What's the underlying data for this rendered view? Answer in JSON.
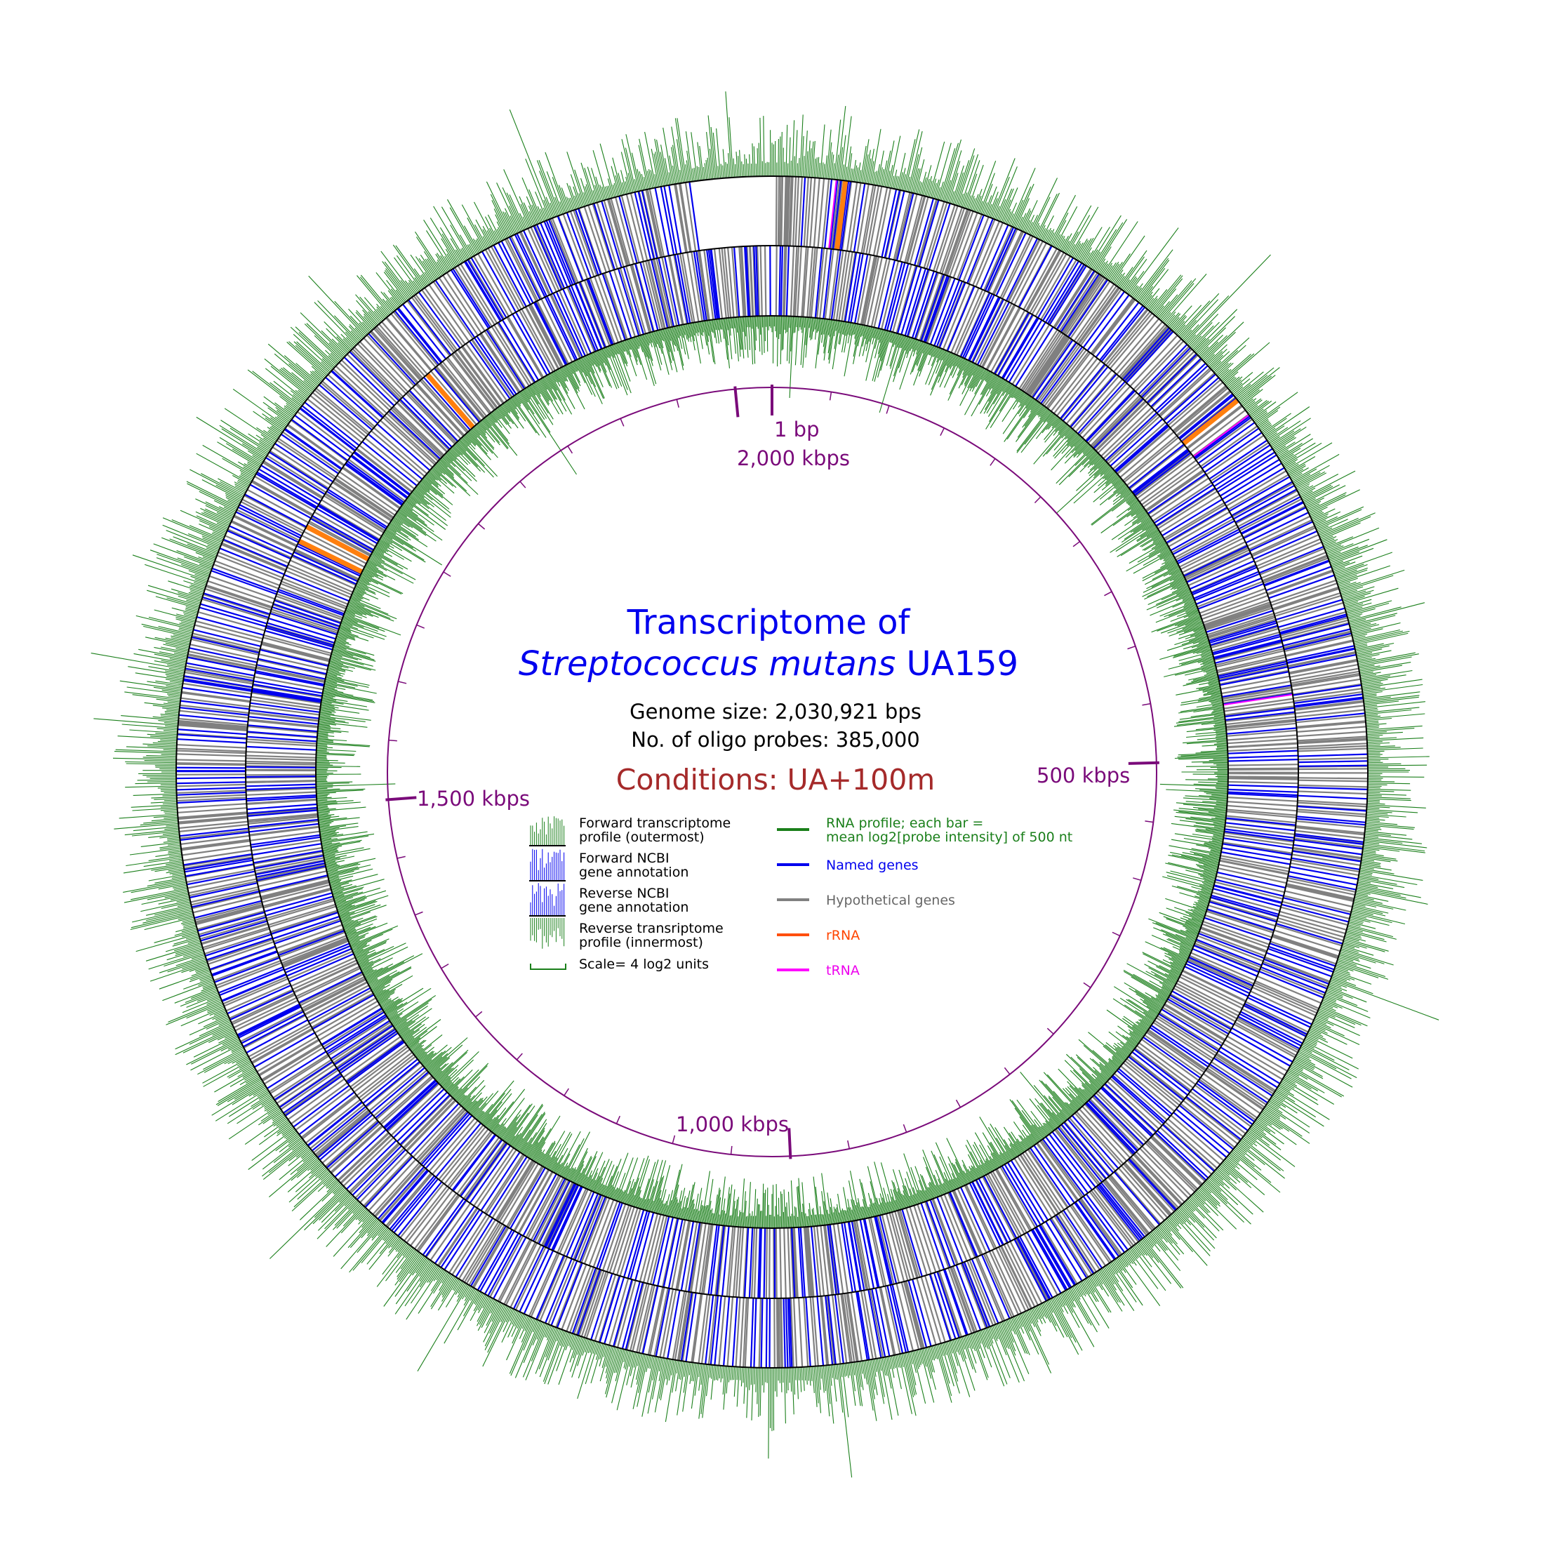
{
  "title": {
    "line1": "Transcriptome of",
    "species": "Streptococcus mutans",
    "strain": "UA159"
  },
  "genome_size": "Genome size: 2,030,921 bps",
  "probes": "No. of oligo probes: 385,000",
  "conditions": "Conditions: UA+100m",
  "axis_labels": {
    "start": "1 bp",
    "end": "2,000 kbps",
    "k500": "500 kbps",
    "k1000": "1,000 kbps",
    "k1500": "1,500 kbps"
  },
  "legend_left": {
    "forward_profile_1": "Forward transcriptome",
    "forward_profile_2": "profile (outermost)",
    "forward_gene_1": "Forward NCBI",
    "forward_gene_2": "gene annotation",
    "reverse_gene_1": "Reverse NCBI",
    "reverse_gene_2": "gene annotation",
    "reverse_profile_1": "Reverse transriptome",
    "reverse_profile_2": "profile (innermost)",
    "scale": "Scale= 4 log2 units"
  },
  "legend_right": {
    "rna_profile_1": "RNA profile; each bar =",
    "rna_profile_2": "mean log2[probe intensity] of 500 nt",
    "named": "Named genes",
    "hypothetical": "Hypothetical genes",
    "rrna": "rRNA",
    "trna": "tRNA"
  },
  "colors": {
    "profile": "#1a7f1a",
    "named": "#0000ee",
    "hypothetical": "#808080",
    "rrna": "#ff7f0e",
    "trna": "#ff00ff",
    "axis": "#7a0a7a",
    "title": "#0000ee",
    "conditions": "#a52a2a"
  },
  "chart_data": {
    "type": "circular genome map",
    "genome_length_bp": 2030921,
    "major_ticks_bp": [
      1,
      500000,
      1000000,
      1500000,
      2000000
    ],
    "minor_tick_interval_bp": 50000,
    "rrna_operon_positions_bp": [
      40000,
      290000,
      1800000,
      1670000,
      1680000
    ],
    "trna_positions_bp": [
      35000,
      300000,
      460000
    ],
    "profile_bin_nt": 500,
    "scale_log2_units": 4
  }
}
